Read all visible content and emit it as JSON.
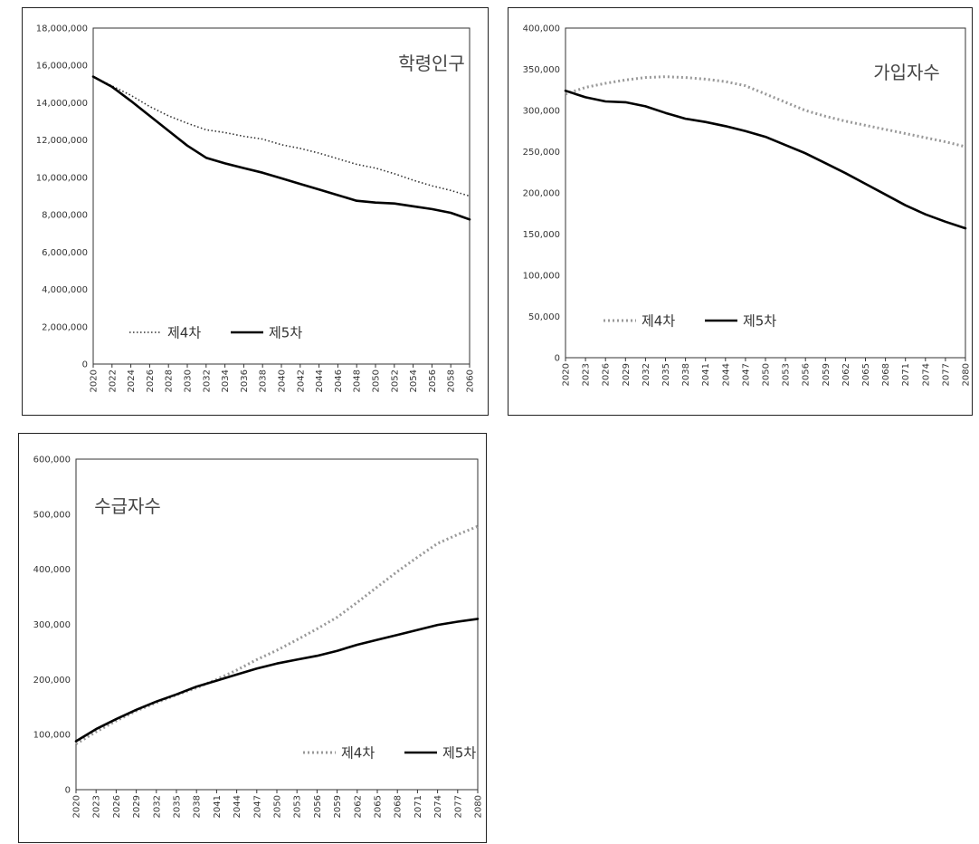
{
  "chart_data": [
    {
      "type": "line",
      "title": "학령인구",
      "xlabel": "",
      "ylabel": "",
      "x_ticks": [
        "2020",
        "2022",
        "2024",
        "2026",
        "2028",
        "2030",
        "2032",
        "2034",
        "2036",
        "2038",
        "2040",
        "2042",
        "2044",
        "2046",
        "2048",
        "2050",
        "2052",
        "2054",
        "2056",
        "2058",
        "2060"
      ],
      "y_ticks": [
        "0",
        "2,000,000",
        "4,000,000",
        "6,000,000",
        "8,000,000",
        "10,000,000",
        "12,000,000",
        "14,000,000",
        "16,000,000",
        "18,000,000"
      ],
      "ylim": [
        0,
        18000000
      ],
      "xlim": [
        2020,
        2060
      ],
      "legend_position": "bottom-left",
      "grid": false,
      "series": [
        {
          "name": "제4차",
          "style": "dotted",
          "color": "#333333",
          "x": [
            2020,
            2022,
            2024,
            2026,
            2028,
            2030,
            2032,
            2034,
            2036,
            2038,
            2040,
            2042,
            2044,
            2046,
            2048,
            2050,
            2052,
            2054,
            2056,
            2058,
            2060
          ],
          "values": [
            15400000,
            14900000,
            14400000,
            13800000,
            13300000,
            12900000,
            12550000,
            12400000,
            12200000,
            12050000,
            11750000,
            11550000,
            11300000,
            11000000,
            10700000,
            10500000,
            10200000,
            9850000,
            9550000,
            9300000,
            9000000
          ]
        },
        {
          "name": "제5차",
          "style": "solid",
          "color": "#000000",
          "x": [
            2020,
            2022,
            2024,
            2026,
            2028,
            2030,
            2032,
            2034,
            2036,
            2038,
            2040,
            2042,
            2044,
            2046,
            2048,
            2050,
            2052,
            2054,
            2056,
            2058,
            2060
          ],
          "values": [
            15400000,
            14850000,
            14100000,
            13300000,
            12500000,
            11700000,
            11050000,
            10750000,
            10500000,
            10250000,
            9950000,
            9650000,
            9350000,
            9050000,
            8750000,
            8650000,
            8600000,
            8450000,
            8300000,
            8100000,
            7750000
          ]
        }
      ]
    },
    {
      "type": "line",
      "title": "가입자수",
      "xlabel": "",
      "ylabel": "",
      "x_ticks": [
        "2020",
        "2023",
        "2026",
        "2029",
        "2032",
        "2035",
        "2038",
        "2041",
        "2044",
        "2047",
        "2050",
        "2053",
        "2056",
        "2059",
        "2062",
        "2065",
        "2068",
        "2071",
        "2074",
        "2077",
        "2080"
      ],
      "y_ticks": [
        "0",
        "50,000",
        "100,000",
        "150,000",
        "200,000",
        "250,000",
        "300,000",
        "350,000",
        "400,000"
      ],
      "ylim": [
        0,
        400000
      ],
      "xlim": [
        2020,
        2080
      ],
      "legend_position": "bottom-left",
      "grid": false,
      "series": [
        {
          "name": "제4차",
          "style": "dotted",
          "color": "#999999",
          "x": [
            2020,
            2023,
            2026,
            2029,
            2032,
            2035,
            2038,
            2041,
            2044,
            2047,
            2050,
            2053,
            2056,
            2059,
            2062,
            2065,
            2068,
            2071,
            2074,
            2077,
            2080
          ],
          "values": [
            320000,
            328000,
            333000,
            337000,
            340000,
            341000,
            340000,
            338000,
            335000,
            330000,
            320000,
            310000,
            300000,
            293000,
            287000,
            282000,
            277000,
            272000,
            267000,
            262000,
            256000
          ]
        },
        {
          "name": "제5차",
          "style": "solid",
          "color": "#000000",
          "x": [
            2020,
            2023,
            2026,
            2029,
            2032,
            2035,
            2038,
            2041,
            2044,
            2047,
            2050,
            2053,
            2056,
            2059,
            2062,
            2065,
            2068,
            2071,
            2074,
            2077,
            2080
          ],
          "values": [
            324000,
            316000,
            311000,
            310000,
            305000,
            297000,
            290000,
            286000,
            281000,
            275000,
            268000,
            258000,
            248000,
            236000,
            224000,
            211000,
            198000,
            185000,
            174000,
            165000,
            157000
          ]
        }
      ]
    },
    {
      "type": "line",
      "title": "수급자수",
      "xlabel": "",
      "ylabel": "",
      "x_ticks": [
        "2020",
        "2023",
        "2026",
        "2029",
        "2032",
        "2035",
        "2038",
        "2041",
        "2044",
        "2047",
        "2050",
        "2053",
        "2056",
        "2059",
        "2062",
        "2065",
        "2068",
        "2071",
        "2074",
        "2077",
        "2080"
      ],
      "y_ticks": [
        "0",
        "100,000",
        "200,000",
        "300,000",
        "400,000",
        "500,000",
        "600,000"
      ],
      "ylim": [
        0,
        600000
      ],
      "xlim": [
        2020,
        2080
      ],
      "legend_position": "bottom-right",
      "grid": false,
      "series": [
        {
          "name": "제4차",
          "style": "dotted",
          "color": "#999999",
          "x": [
            2020,
            2023,
            2026,
            2029,
            2032,
            2035,
            2038,
            2041,
            2044,
            2047,
            2050,
            2053,
            2056,
            2059,
            2062,
            2065,
            2068,
            2071,
            2074,
            2077,
            2080
          ],
          "values": [
            83000,
            105000,
            125000,
            143000,
            158000,
            172000,
            185000,
            200000,
            217000,
            236000,
            253000,
            272000,
            292000,
            313000,
            340000,
            368000,
            396000,
            422000,
            447000,
            463000,
            478000
          ]
        },
        {
          "name": "제5차",
          "style": "solid",
          "color": "#000000",
          "x": [
            2020,
            2023,
            2026,
            2029,
            2032,
            2035,
            2038,
            2041,
            2044,
            2047,
            2050,
            2053,
            2056,
            2059,
            2062,
            2065,
            2068,
            2071,
            2074,
            2077,
            2080
          ],
          "values": [
            88000,
            110000,
            128000,
            145000,
            160000,
            173000,
            187000,
            198000,
            209000,
            220000,
            229000,
            236000,
            243000,
            252000,
            263000,
            272000,
            281000,
            290000,
            299000,
            305000,
            310000
          ]
        }
      ]
    }
  ]
}
